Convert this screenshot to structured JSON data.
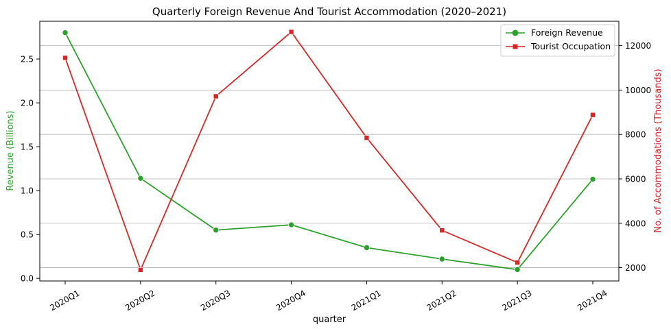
{
  "chart_data": {
    "type": "line",
    "title": "Quarterly Foreign Revenue And Tourist Accommodation (2020–2021)",
    "xlabel": "quarter",
    "ylabel_left": "Revenue (Billions)",
    "ylabel_right": "No. of Accommodations (Thousands)",
    "categories": [
      "2020Q1",
      "2020Q2",
      "2020Q3",
      "2020Q4",
      "2021Q1",
      "2021Q2",
      "2021Q3",
      "2021Q4"
    ],
    "left_axis": {
      "ylim": [
        -0.03,
        2.93
      ],
      "ticks": [
        "0.0",
        "0.5",
        "1.0",
        "1.5",
        "2.0",
        "2.5"
      ]
    },
    "right_axis": {
      "ylim": [
        1400,
        13100
      ],
      "ticks": [
        "2000",
        "4000",
        "6000",
        "8000",
        "10000",
        "12000"
      ]
    },
    "grid": "horizontal, right axis",
    "legend_position": "top-right",
    "series": [
      {
        "name": "Foreign Revenue",
        "axis": "left",
        "marker": "circle",
        "color": "#2ca02c",
        "values": [
          2.8,
          1.14,
          0.55,
          0.61,
          0.35,
          0.22,
          0.1,
          1.13
        ]
      },
      {
        "name": "Tourist Occupation",
        "axis": "right",
        "marker": "square",
        "color": "#d62728",
        "values": [
          11450,
          1900,
          9720,
          12620,
          7850,
          3680,
          2230,
          8880
        ]
      }
    ]
  }
}
